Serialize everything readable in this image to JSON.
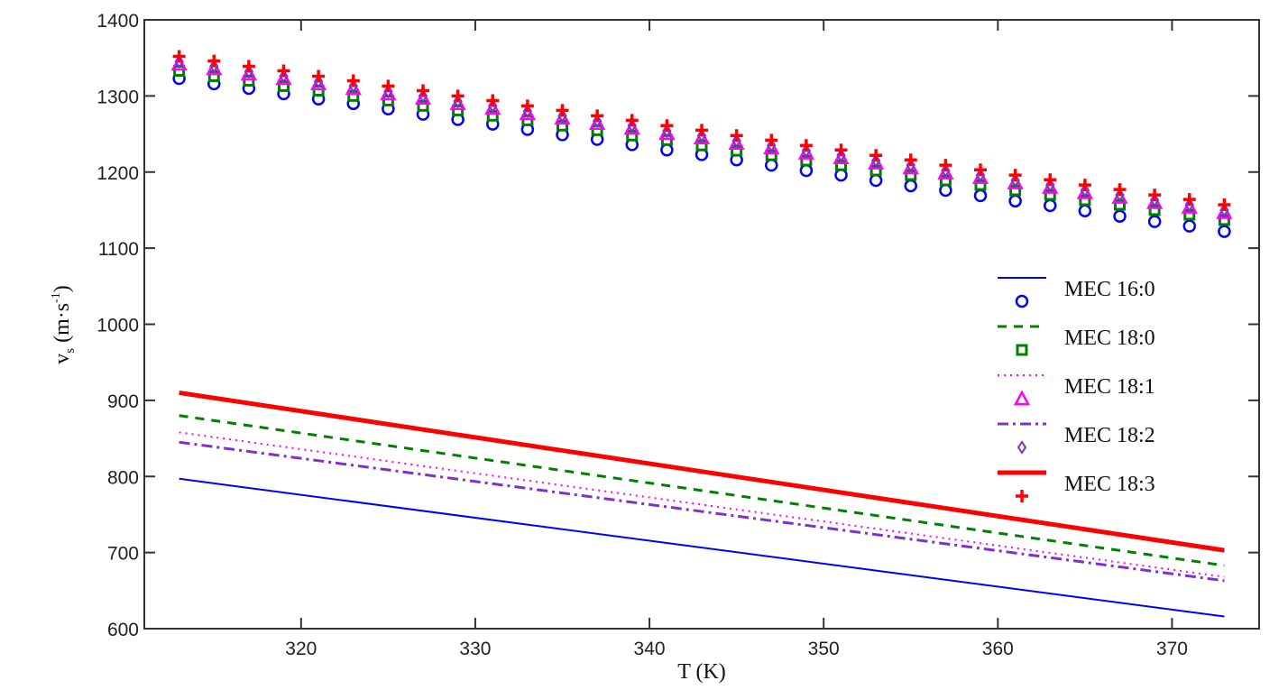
{
  "chart_data": {
    "type": "scatter",
    "title": "",
    "xlabel": "T (K)",
    "ylabel_main": "v",
    "ylabel_sub": "s",
    "ylabel_unit": "(m·s",
    "ylabel_exp": "-1",
    "ylabel_close": ")",
    "xlim": [
      311,
      375
    ],
    "ylim": [
      600,
      1400
    ],
    "xticks": [
      320,
      330,
      340,
      350,
      360,
      370
    ],
    "yticks": [
      600,
      700,
      800,
      900,
      1000,
      1100,
      1200,
      1300,
      1400
    ],
    "grid": false,
    "legend_position": "right",
    "marker_x": [
      313,
      315,
      317,
      319,
      321,
      323,
      325,
      327,
      329,
      331,
      333,
      335,
      337,
      339,
      341,
      343,
      345,
      347,
      349,
      351,
      353,
      355,
      357,
      359,
      361,
      363,
      365,
      367,
      369,
      371,
      373
    ],
    "series": [
      {
        "name": "MEC 16:0",
        "color": "#0000ff",
        "line_style": "solid",
        "line_width": 2,
        "marker": "circle",
        "line_x": [
          313,
          373
        ],
        "line_y": [
          797,
          616
        ],
        "marker_y": [
          1323,
          1316,
          1310,
          1303,
          1296,
          1290,
          1283,
          1276,
          1269,
          1263,
          1256,
          1249,
          1243,
          1236,
          1229,
          1223,
          1216,
          1209,
          1202,
          1196,
          1189,
          1182,
          1176,
          1169,
          1162,
          1156,
          1149,
          1142,
          1135,
          1129,
          1122
        ]
      },
      {
        "name": "MEC 18:0",
        "color": "#008000",
        "line_style": "dashed",
        "line_width": 3,
        "marker": "square",
        "line_x": [
          313,
          373
        ],
        "line_y": [
          880,
          683
        ],
        "marker_y": [
          1333,
          1326,
          1320,
          1313,
          1307,
          1300,
          1294,
          1287,
          1281,
          1274,
          1268,
          1261,
          1255,
          1248,
          1242,
          1235,
          1228,
          1222,
          1215,
          1209,
          1202,
          1196,
          1189,
          1183,
          1176,
          1170,
          1163,
          1157,
          1150,
          1144,
          1137
        ]
      },
      {
        "name": "MEC 18:1",
        "color": "#ff00ff",
        "line_style": "dotted",
        "line_width": 2,
        "marker": "triangle",
        "line_x": [
          313,
          373
        ],
        "line_y": [
          858,
          668
        ],
        "marker_y": [
          1342,
          1336,
          1329,
          1323,
          1316,
          1310,
          1303,
          1297,
          1290,
          1284,
          1277,
          1271,
          1264,
          1258,
          1251,
          1245,
          1238,
          1232,
          1225,
          1219,
          1212,
          1206,
          1199,
          1193,
          1186,
          1180,
          1173,
          1167,
          1160,
          1154,
          1147
        ]
      },
      {
        "name": "MEC 18:2",
        "color": "#8030d0",
        "line_style": "dashdot",
        "line_width": 3,
        "marker": "diamond",
        "line_x": [
          313,
          373
        ],
        "line_y": [
          845,
          663
        ],
        "marker_y": [
          1345,
          1339,
          1332,
          1326,
          1319,
          1313,
          1306,
          1300,
          1293,
          1287,
          1280,
          1274,
          1267,
          1261,
          1254,
          1248,
          1241,
          1235,
          1228,
          1222,
          1215,
          1209,
          1202,
          1196,
          1189,
          1183,
          1176,
          1170,
          1163,
          1157,
          1150
        ]
      },
      {
        "name": "MEC 18:3",
        "color": "#ff0000",
        "line_style": "solid",
        "line_width": 5,
        "marker": "plus",
        "line_x": [
          313,
          373
        ],
        "line_y": [
          910,
          703
        ],
        "marker_y": [
          1352,
          1346,
          1339,
          1333,
          1326,
          1320,
          1313,
          1307,
          1300,
          1294,
          1287,
          1281,
          1274,
          1268,
          1261,
          1255,
          1248,
          1242,
          1235,
          1229,
          1222,
          1216,
          1209,
          1203,
          1196,
          1190,
          1183,
          1177,
          1170,
          1164,
          1157
        ]
      }
    ]
  }
}
